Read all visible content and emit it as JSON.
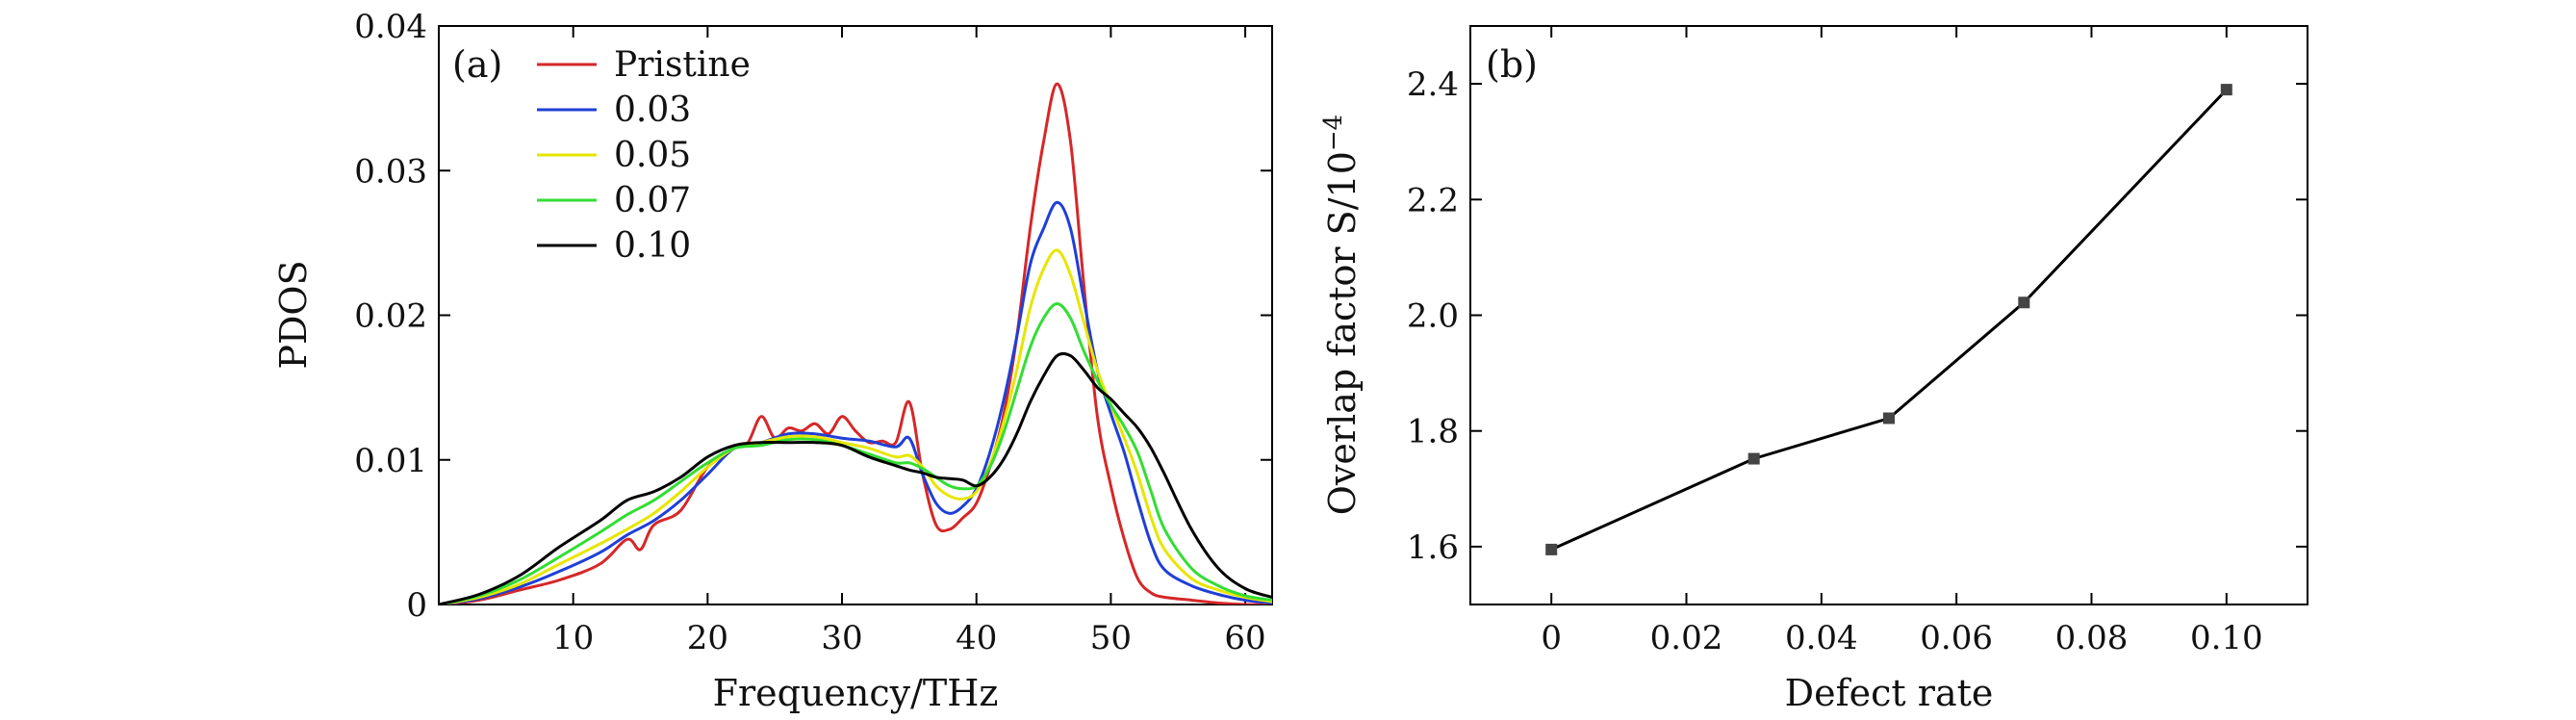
{
  "chart_data": [
    {
      "type": "line",
      "panel_label": "(a)",
      "xlabel": "Frequency/THz",
      "ylabel": "PDOS",
      "xlim": [
        0,
        62
      ],
      "ylim": [
        0,
        0.04
      ],
      "xticks": [
        10,
        20,
        30,
        40,
        50,
        60
      ],
      "xtick_labels": [
        "10",
        "20",
        "30",
        "40",
        "50",
        "60"
      ],
      "yticks": [
        0,
        0.01,
        0.02,
        0.03,
        0.04
      ],
      "ytick_labels": [
        "0",
        "0.01",
        "0.02",
        "0.03",
        "0.04"
      ],
      "legend_position": "top-left",
      "series": [
        {
          "name": "Pristine",
          "color": "#d62728",
          "x": [
            0,
            3,
            6,
            9,
            12,
            14,
            15,
            16,
            18,
            20,
            22,
            23,
            24,
            25,
            26,
            27,
            28,
            29,
            30,
            31,
            32,
            33,
            34,
            35,
            36,
            37,
            38,
            39,
            40,
            41,
            42,
            43,
            44,
            45,
            46,
            47,
            48,
            49,
            50,
            51,
            52,
            53,
            54,
            56,
            58,
            60,
            62
          ],
          "y": [
            0,
            0.0003,
            0.001,
            0.0017,
            0.0028,
            0.0045,
            0.0038,
            0.0055,
            0.0065,
            0.0095,
            0.0108,
            0.0112,
            0.013,
            0.0115,
            0.0122,
            0.012,
            0.0125,
            0.0118,
            0.013,
            0.012,
            0.0112,
            0.0113,
            0.0112,
            0.014,
            0.009,
            0.0055,
            0.0052,
            0.006,
            0.007,
            0.0095,
            0.013,
            0.0185,
            0.026,
            0.032,
            0.036,
            0.032,
            0.022,
            0.013,
            0.0082,
            0.0045,
            0.0018,
            0.0008,
            0.0005,
            0.0003,
            0.0001,
            0.0,
            0.0
          ]
        },
        {
          "name": "0.03",
          "color": "#1f3fd6",
          "x": [
            0,
            3,
            6,
            9,
            12,
            14,
            16,
            18,
            20,
            22,
            24,
            26,
            28,
            30,
            32,
            34,
            35,
            36,
            37,
            38,
            39,
            40,
            41,
            42,
            43,
            44,
            45,
            46,
            47,
            48,
            49,
            50,
            51,
            52,
            53,
            54,
            56,
            58,
            60,
            62
          ],
          "y": [
            0,
            0.0004,
            0.0012,
            0.0023,
            0.0036,
            0.0048,
            0.0058,
            0.0072,
            0.009,
            0.0108,
            0.0112,
            0.0118,
            0.0118,
            0.0115,
            0.0113,
            0.0109,
            0.0115,
            0.009,
            0.007,
            0.0063,
            0.0068,
            0.008,
            0.0105,
            0.014,
            0.0185,
            0.0235,
            0.026,
            0.0278,
            0.026,
            0.021,
            0.0162,
            0.0132,
            0.0105,
            0.0072,
            0.0042,
            0.0024,
            0.0013,
            0.0007,
            0.0003,
            0.0001
          ]
        },
        {
          "name": "0.05",
          "color": "#e6e600",
          "x": [
            0,
            3,
            6,
            9,
            12,
            14,
            16,
            18,
            20,
            22,
            24,
            26,
            28,
            30,
            32,
            34,
            35,
            36,
            37,
            38,
            39,
            40,
            41,
            42,
            43,
            44,
            45,
            46,
            47,
            48,
            49,
            50,
            51,
            52,
            53,
            54,
            56,
            58,
            60,
            62
          ],
          "y": [
            0,
            0.0005,
            0.0014,
            0.0028,
            0.0042,
            0.0052,
            0.0063,
            0.0078,
            0.0095,
            0.0108,
            0.0112,
            0.0116,
            0.0116,
            0.0112,
            0.0108,
            0.0102,
            0.0103,
            0.0095,
            0.0082,
            0.0075,
            0.0073,
            0.0078,
            0.0097,
            0.0125,
            0.0162,
            0.0205,
            0.0232,
            0.0245,
            0.0228,
            0.0195,
            0.0162,
            0.0138,
            0.0115,
            0.009,
            0.006,
            0.0038,
            0.0018,
            0.001,
            0.0005,
            0.0002
          ]
        },
        {
          "name": "0.07",
          "color": "#33dd33",
          "x": [
            0,
            3,
            6,
            9,
            12,
            14,
            16,
            18,
            20,
            22,
            24,
            26,
            28,
            30,
            32,
            34,
            35,
            36,
            37,
            38,
            39,
            40,
            41,
            42,
            43,
            44,
            45,
            46,
            47,
            48,
            49,
            50,
            51,
            52,
            53,
            54,
            56,
            58,
            60,
            62
          ],
          "y": [
            0,
            0.0006,
            0.0017,
            0.0033,
            0.005,
            0.0062,
            0.0072,
            0.0085,
            0.0098,
            0.0108,
            0.011,
            0.0114,
            0.0114,
            0.011,
            0.0104,
            0.0098,
            0.0098,
            0.0094,
            0.0088,
            0.0082,
            0.008,
            0.0082,
            0.0095,
            0.0118,
            0.0148,
            0.0178,
            0.0198,
            0.0208,
            0.0198,
            0.0175,
            0.0155,
            0.0138,
            0.0123,
            0.0105,
            0.0078,
            0.0052,
            0.0025,
            0.0013,
            0.0006,
            0.0003
          ]
        },
        {
          "name": "0.10",
          "color": "#000000",
          "x": [
            0,
            3,
            6,
            9,
            12,
            14,
            16,
            18,
            20,
            22,
            24,
            26,
            28,
            30,
            32,
            34,
            35,
            36,
            37,
            38,
            39,
            40,
            41,
            42,
            43,
            44,
            45,
            46,
            47,
            48,
            49,
            50,
            51,
            52,
            53,
            54,
            56,
            58,
            60,
            62
          ],
          "y": [
            0,
            0.0007,
            0.002,
            0.004,
            0.0058,
            0.0072,
            0.0078,
            0.0088,
            0.0102,
            0.011,
            0.0112,
            0.0112,
            0.0112,
            0.011,
            0.0102,
            0.0096,
            0.0093,
            0.0091,
            0.0088,
            0.0087,
            0.0086,
            0.0082,
            0.0088,
            0.01,
            0.0118,
            0.014,
            0.0158,
            0.0172,
            0.0172,
            0.0162,
            0.015,
            0.0142,
            0.0132,
            0.0122,
            0.0108,
            0.009,
            0.0052,
            0.0025,
            0.0011,
            0.0005
          ]
        }
      ]
    },
    {
      "type": "line",
      "panel_label": "(b)",
      "xlabel": "Defect rate",
      "ylabel": "Overlap factor S/10",
      "ylabel_exponent": "−4",
      "xlim": [
        -0.012,
        0.112
      ],
      "ylim": [
        1.5,
        2.5
      ],
      "xticks": [
        0,
        0.02,
        0.04,
        0.06,
        0.08,
        0.1
      ],
      "xtick_labels": [
        "0",
        "0.02",
        "0.04",
        "0.06",
        "0.08",
        "0.10"
      ],
      "yticks": [
        1.6,
        1.8,
        2.0,
        2.2,
        2.4
      ],
      "ytick_labels": [
        "1.6",
        "1.8",
        "2.0",
        "2.2",
        "2.4"
      ],
      "series": [
        {
          "name": "Overlap factor",
          "color": "#000000",
          "x": [
            0,
            0.03,
            0.05,
            0.07,
            0.1
          ],
          "y": [
            1.595,
            1.752,
            1.822,
            2.022,
            2.39
          ]
        }
      ]
    }
  ]
}
